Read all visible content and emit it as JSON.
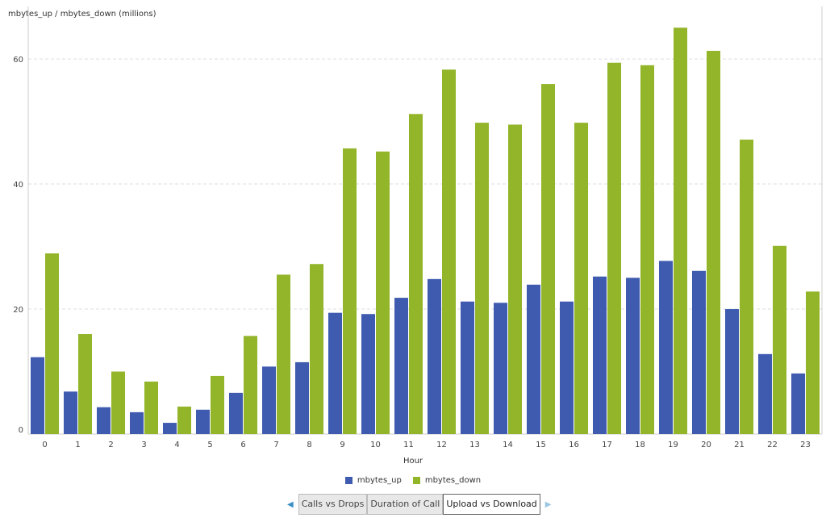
{
  "chart_data": {
    "type": "bar",
    "title": "",
    "ylabel": "mbytes_up / mbytes_down (millions)",
    "xlabel": "Hour",
    "categories": [
      "0",
      "1",
      "2",
      "3",
      "4",
      "5",
      "6",
      "7",
      "8",
      "9",
      "10",
      "11",
      "12",
      "13",
      "14",
      "15",
      "16",
      "17",
      "18",
      "19",
      "20",
      "21",
      "22",
      "23"
    ],
    "series": [
      {
        "name": "mbytes_up",
        "color": "#3f5bb0",
        "values": [
          12.3,
          6.8,
          4.3,
          3.5,
          1.8,
          3.9,
          6.6,
          10.8,
          11.5,
          19.4,
          19.2,
          21.8,
          24.8,
          21.2,
          21.0,
          23.9,
          21.2,
          25.2,
          25.0,
          27.7,
          26.1,
          20.0,
          12.8,
          9.7
        ]
      },
      {
        "name": "mbytes_down",
        "color": "#93b52a",
        "values": [
          28.9,
          16.0,
          10.0,
          8.4,
          4.4,
          9.3,
          15.7,
          25.5,
          27.2,
          45.7,
          45.2,
          51.2,
          58.3,
          49.8,
          49.5,
          56.0,
          49.8,
          59.4,
          59.0,
          65.0,
          61.3,
          47.1,
          30.1,
          22.8
        ]
      }
    ],
    "yticks": [
      0,
      20,
      40,
      60
    ],
    "ylim": [
      0,
      68.4
    ],
    "grid": "horizontal dashed",
    "legend": "bottom-center"
  },
  "tabs": [
    {
      "label": "Calls vs Drops",
      "active": false
    },
    {
      "label": "Duration of Call",
      "active": false
    },
    {
      "label": "Upload vs Download",
      "active": true
    }
  ],
  "icons": {
    "prev": "triangle-left-icon",
    "next": "triangle-right-icon"
  }
}
